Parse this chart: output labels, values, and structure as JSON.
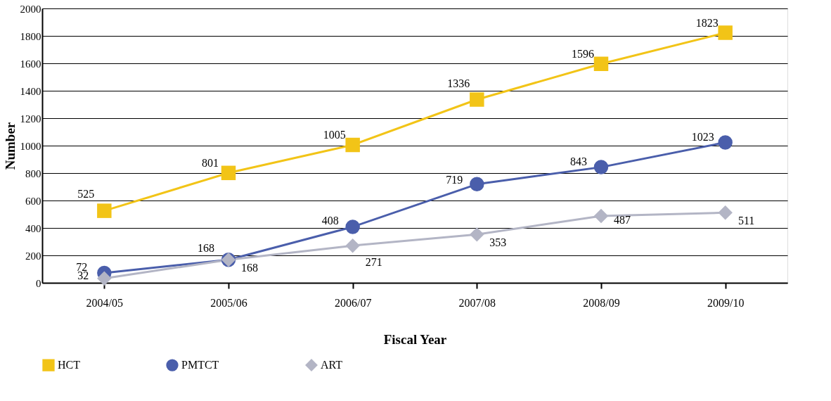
{
  "chart_data": {
    "type": "line",
    "xlabel": "Fiscal Year",
    "ylabel": "Number",
    "categories": [
      "2004/05",
      "2005/06",
      "2006/07",
      "2007/08",
      "2008/09",
      "2009/10"
    ],
    "series": [
      {
        "name": "HCT",
        "color": "#f2c417",
        "marker": "square",
        "values": [
          525,
          801,
          1005,
          1336,
          1596,
          1823
        ]
      },
      {
        "name": "PMTCT",
        "color": "#4a5eab",
        "marker": "circle",
        "values": [
          72,
          168,
          408,
          719,
          843,
          1023
        ]
      },
      {
        "name": "ART",
        "color": "#b3b5c5",
        "marker": "diamond",
        "values": [
          32,
          168,
          271,
          353,
          487,
          511
        ]
      }
    ],
    "ylim": [
      0,
      2000
    ],
    "yticks": [
      0,
      200,
      400,
      600,
      800,
      1000,
      1200,
      1400,
      1600,
      1800,
      2000
    ],
    "grid": "y",
    "legend": "bottom",
    "data_labels": true
  }
}
